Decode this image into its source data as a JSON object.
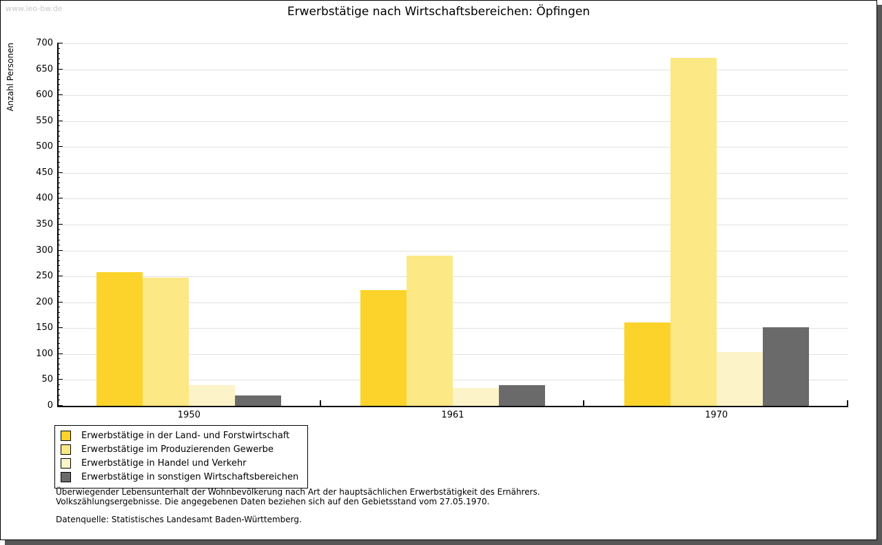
{
  "watermark": "www.leo-bw.de",
  "title": "Erwerbstätige nach Wirtschaftsbereichen: Öpfingen",
  "chart_data": {
    "type": "bar",
    "title": "Erwerbstätige nach Wirtschaftsbereichen: Öpfingen",
    "xlabel": "",
    "ylabel": "Anzahl Personen",
    "ylim": [
      0,
      700
    ],
    "ytick_step": 50,
    "y_minor_tick_step": 10,
    "grid": true,
    "gridline_color": "#e0e0e0",
    "legend_position": "bottom-left",
    "categories": [
      "1950",
      "1961",
      "1970"
    ],
    "series": [
      {
        "name": "Erwerbstätige in der Land- und Forstwirtschaft",
        "color": "#fcd32b",
        "values": [
          258,
          224,
          161
        ]
      },
      {
        "name": "Erwerbstätige im Produzierenden Gewerbe",
        "color": "#fce885",
        "values": [
          247,
          290,
          672
        ]
      },
      {
        "name": "Erwerbstätige in Handel und Verkehr",
        "color": "#fdf3c8",
        "values": [
          40,
          34,
          104
        ]
      },
      {
        "name": "Erwerbstätige in sonstigen Wirtschaftsbereichen",
        "color": "#6a6a6a",
        "values": [
          20,
          40,
          152
        ]
      }
    ]
  },
  "footnotes": {
    "line1": "Überwiegender Lebensunterhalt der Wohnbevölkerung nach Art der hauptsächlichen Erwerbstätigkeit des Ernährers.",
    "line2": "Volkszählungsergebnisse. Die angegebenen Daten beziehen sich auf den Gebietsstand vom 27.05.1970.",
    "source": "Datenquelle: Statistisches Landesamt Baden-Württemberg."
  }
}
